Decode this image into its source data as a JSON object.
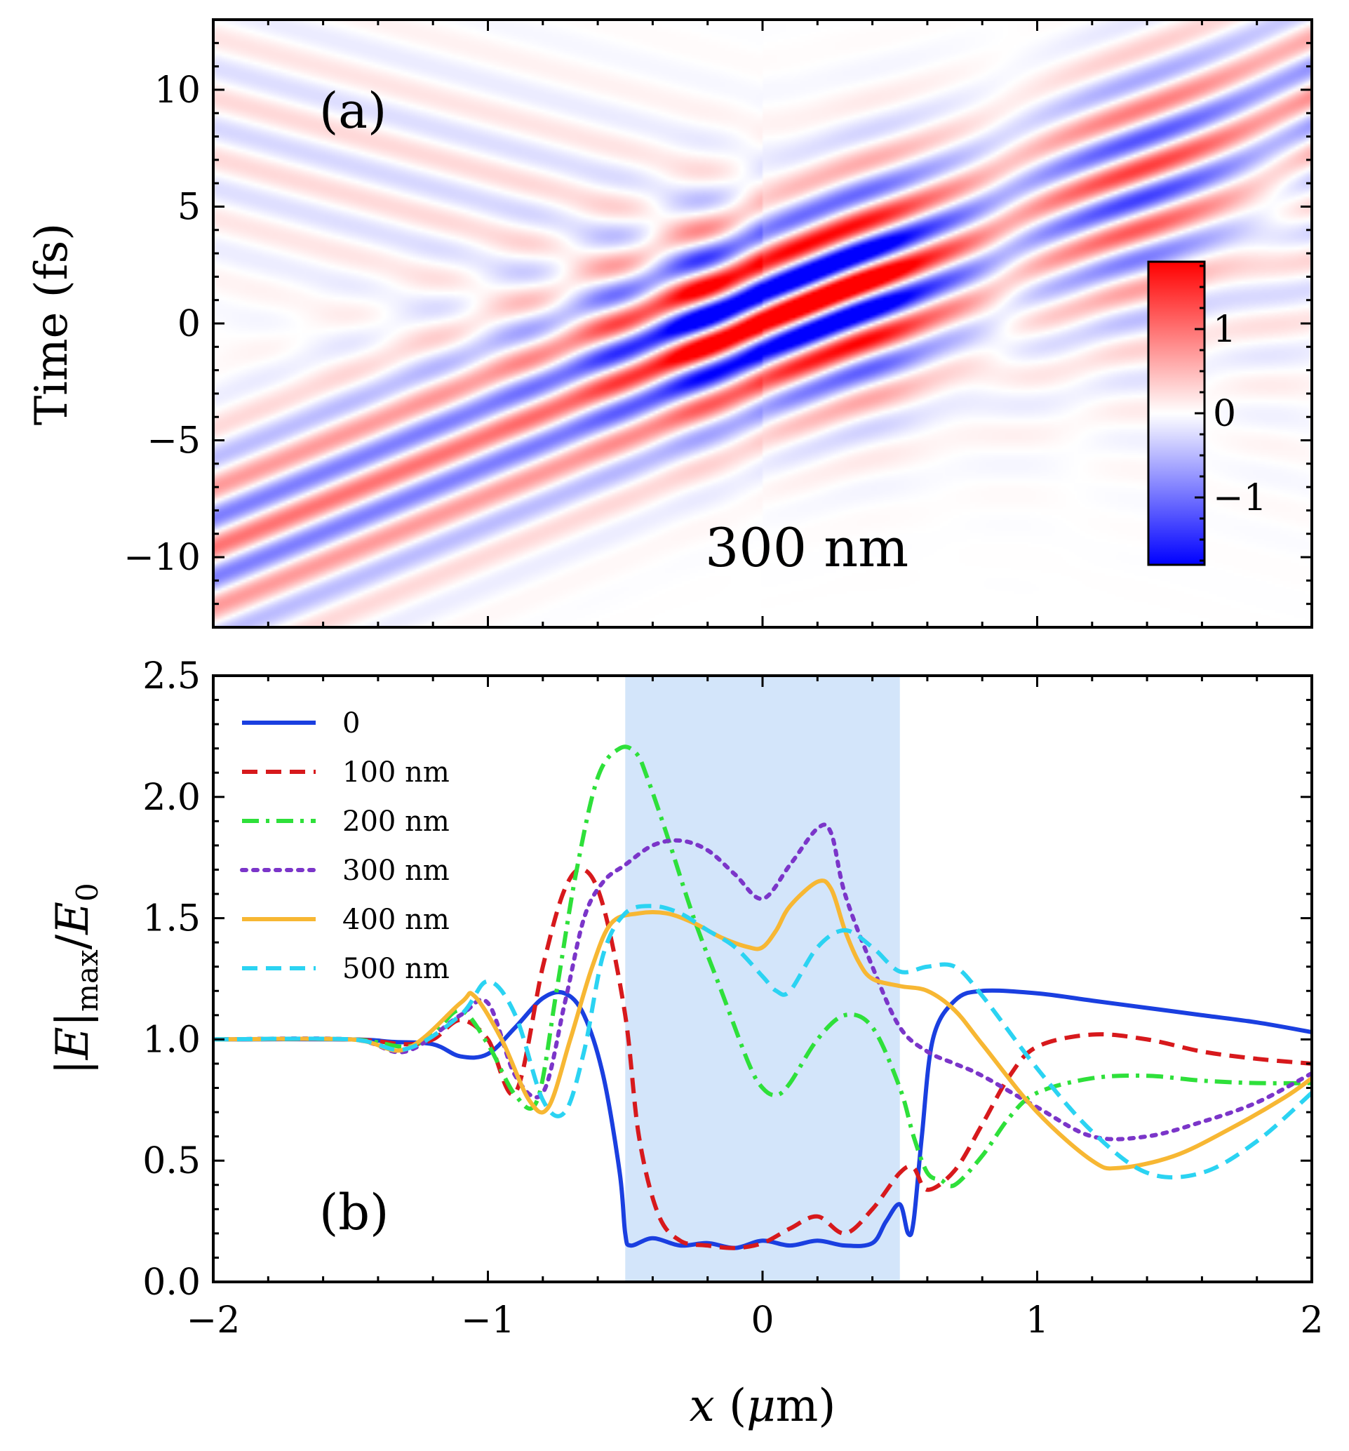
{
  "chart_data": [
    {
      "type": "heatmap",
      "panel_label": "(a)",
      "annotation": "300 nm",
      "ylabel": "Time (fs)",
      "xlim": [
        -2,
        2
      ],
      "ylim": [
        -13,
        13
      ],
      "yticks": [
        -10,
        -5,
        0,
        5,
        10
      ],
      "ytick_labels": [
        "−10",
        "−5",
        "0",
        "5",
        "10"
      ],
      "xticks": [
        -2,
        -1,
        0,
        1,
        2
      ],
      "colorbar": {
        "range": [
          -1.8,
          1.8
        ],
        "ticks": [
          -1,
          0,
          1
        ],
        "tick_labels": [
          "−1",
          "0",
          "1"
        ],
        "colors": {
          "low": "#0000ff",
          "mid": "#ffffff",
          "high": "#ff0000"
        }
      },
      "field": {
        "description_values": "oscillating electric field, pulse centered near x=0, t=0",
        "incident_slope_fs_per_um": 4.8,
        "period_fs": 2.6,
        "peak_amplitude": 1.8
      }
    },
    {
      "type": "line",
      "panel_label": "(b)",
      "xlabel": "x (μm)",
      "ylabel": "|E|max/E0",
      "xlim": [
        -2,
        2
      ],
      "ylim": [
        0,
        2.5
      ],
      "xticks": [
        -2,
        -1,
        0,
        1,
        2
      ],
      "xtick_labels": [
        "−2",
        "−1",
        "0",
        "1",
        "2"
      ],
      "yticks": [
        0,
        0.5,
        1.0,
        1.5,
        2.0,
        2.5
      ],
      "ytick_labels": [
        "0.0",
        "0.5",
        "1.0",
        "1.5",
        "2.0",
        "2.5"
      ],
      "shaded_region": {
        "x": [
          -0.5,
          0.5
        ],
        "color": "#d3e5fa"
      },
      "legend_position": "top-left",
      "series": [
        {
          "name": "0",
          "color": "#1a3fe0",
          "dash": "solid",
          "x": [
            -2,
            -1.5,
            -1.35,
            -1.2,
            -1.1,
            -1.0,
            -0.9,
            -0.8,
            -0.72,
            -0.65,
            -0.58,
            -0.52,
            -0.5,
            -0.48,
            -0.4,
            -0.3,
            -0.2,
            -0.1,
            0.0,
            0.1,
            0.2,
            0.3,
            0.4,
            0.45,
            0.5,
            0.53,
            0.55,
            0.58,
            0.62,
            0.7,
            0.8,
            1.0,
            1.2,
            1.4,
            1.6,
            1.8,
            2.0
          ],
          "y": [
            1.0,
            1.0,
            0.99,
            0.98,
            0.93,
            0.94,
            1.05,
            1.17,
            1.19,
            1.1,
            0.85,
            0.45,
            0.2,
            0.15,
            0.18,
            0.15,
            0.16,
            0.14,
            0.17,
            0.15,
            0.17,
            0.15,
            0.16,
            0.25,
            0.32,
            0.2,
            0.25,
            0.6,
            1.0,
            1.16,
            1.2,
            1.19,
            1.16,
            1.13,
            1.1,
            1.07,
            1.03
          ]
        },
        {
          "name": "100 nm",
          "color": "#d7191c",
          "dash": "dashed",
          "x": [
            -2,
            -1.5,
            -1.3,
            -1.2,
            -1.1,
            -1.0,
            -0.9,
            -0.8,
            -0.72,
            -0.65,
            -0.58,
            -0.5,
            -0.45,
            -0.38,
            -0.3,
            -0.2,
            -0.1,
            0.0,
            0.1,
            0.2,
            0.3,
            0.4,
            0.5,
            0.55,
            0.6,
            0.7,
            0.8,
            0.9,
            1.0,
            1.2,
            1.4,
            1.6,
            1.8,
            2.0
          ],
          "y": [
            1.0,
            1.0,
            0.98,
            1.0,
            1.08,
            1.0,
            0.78,
            1.3,
            1.62,
            1.7,
            1.55,
            1.1,
            0.6,
            0.28,
            0.17,
            0.15,
            0.14,
            0.16,
            0.22,
            0.27,
            0.2,
            0.3,
            0.45,
            0.47,
            0.38,
            0.46,
            0.65,
            0.85,
            0.97,
            1.02,
            1.0,
            0.95,
            0.92,
            0.9
          ]
        },
        {
          "name": "200 nm",
          "color": "#2ee03a",
          "dash": "dashdot",
          "x": [
            -2,
            -1.5,
            -1.3,
            -1.2,
            -1.1,
            -1.0,
            -0.9,
            -0.82,
            -0.75,
            -0.68,
            -0.6,
            -0.52,
            -0.46,
            -0.42,
            -0.35,
            -0.25,
            -0.15,
            -0.05,
            0.0,
            0.05,
            0.1,
            0.2,
            0.3,
            0.4,
            0.5,
            0.55,
            0.6,
            0.65,
            0.7,
            0.8,
            0.9,
            1.0,
            1.2,
            1.4,
            1.6,
            1.8,
            2.0
          ],
          "y": [
            1.0,
            1.0,
            0.97,
            1.02,
            1.12,
            0.98,
            0.77,
            0.75,
            1.2,
            1.68,
            2.08,
            2.2,
            2.18,
            2.08,
            1.85,
            1.5,
            1.2,
            0.9,
            0.8,
            0.77,
            0.82,
            1.0,
            1.1,
            1.05,
            0.8,
            0.6,
            0.45,
            0.42,
            0.4,
            0.52,
            0.68,
            0.78,
            0.84,
            0.85,
            0.83,
            0.82,
            0.82
          ]
        },
        {
          "name": "300 nm",
          "color": "#7b35c9",
          "dash": "dotted",
          "x": [
            -2,
            -1.5,
            -1.3,
            -1.1,
            -1.0,
            -0.9,
            -0.8,
            -0.72,
            -0.65,
            -0.58,
            -0.5,
            -0.4,
            -0.3,
            -0.2,
            -0.1,
            0.0,
            0.1,
            0.2,
            0.25,
            0.3,
            0.4,
            0.5,
            0.6,
            0.7,
            0.8,
            1.0,
            1.2,
            1.4,
            1.6,
            1.8,
            2.0
          ],
          "y": [
            1.0,
            1.0,
            0.95,
            1.1,
            1.15,
            0.85,
            0.78,
            1.15,
            1.5,
            1.65,
            1.72,
            1.8,
            1.82,
            1.78,
            1.68,
            1.58,
            1.72,
            1.87,
            1.85,
            1.6,
            1.3,
            1.05,
            0.95,
            0.9,
            0.85,
            0.72,
            0.6,
            0.6,
            0.66,
            0.74,
            0.86
          ]
        },
        {
          "name": "400 nm",
          "color": "#f7b733",
          "dash": "solid",
          "x": [
            -2,
            -1.5,
            -1.3,
            -1.1,
            -1.05,
            -0.95,
            -0.85,
            -0.78,
            -0.7,
            -0.62,
            -0.55,
            -0.45,
            -0.35,
            -0.25,
            -0.15,
            -0.05,
            0.0,
            0.05,
            0.1,
            0.2,
            0.25,
            0.3,
            0.35,
            0.4,
            0.5,
            0.6,
            0.7,
            0.8,
            1.0,
            1.2,
            1.3,
            1.5,
            1.7,
            1.9,
            2.0
          ],
          "y": [
            1.0,
            1.0,
            0.96,
            1.15,
            1.18,
            1.0,
            0.75,
            0.72,
            1.0,
            1.3,
            1.48,
            1.52,
            1.52,
            1.48,
            1.42,
            1.38,
            1.38,
            1.45,
            1.55,
            1.65,
            1.62,
            1.45,
            1.32,
            1.25,
            1.22,
            1.2,
            1.12,
            0.98,
            0.7,
            0.5,
            0.47,
            0.52,
            0.63,
            0.76,
            0.84
          ]
        },
        {
          "name": "500 nm",
          "color": "#2bd3f2",
          "dash": "dashed",
          "x": [
            -2,
            -1.5,
            -1.3,
            -1.1,
            -1.0,
            -0.9,
            -0.8,
            -0.72,
            -0.65,
            -0.58,
            -0.5,
            -0.4,
            -0.3,
            -0.2,
            -0.1,
            0.0,
            0.05,
            0.1,
            0.2,
            0.3,
            0.4,
            0.5,
            0.6,
            0.7,
            0.8,
            1.0,
            1.2,
            1.4,
            1.6,
            1.8,
            2.0
          ],
          "y": [
            1.0,
            1.0,
            0.96,
            1.1,
            1.24,
            1.1,
            0.75,
            0.7,
            0.95,
            1.35,
            1.52,
            1.55,
            1.52,
            1.45,
            1.38,
            1.26,
            1.2,
            1.2,
            1.38,
            1.45,
            1.38,
            1.28,
            1.3,
            1.3,
            1.18,
            0.88,
            0.62,
            0.45,
            0.45,
            0.58,
            0.78
          ]
        }
      ]
    }
  ]
}
